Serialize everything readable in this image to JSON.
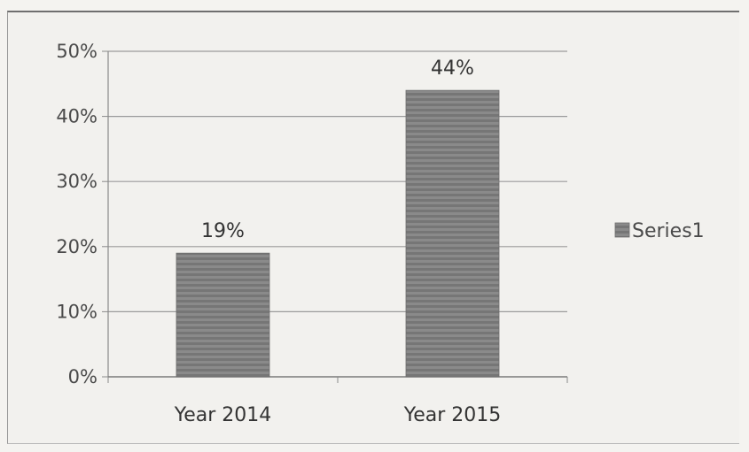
{
  "chart_data": {
    "type": "bar",
    "categories": [
      "Year 2014",
      "Year 2015"
    ],
    "series": [
      {
        "name": "Series1",
        "values": [
          0.19,
          0.44
        ]
      }
    ],
    "data_labels": [
      "19%",
      "44%"
    ],
    "y_ticks": [
      "0%",
      "10%",
      "20%",
      "30%",
      "40%",
      "50%"
    ],
    "ylim": [
      0,
      0.5
    ],
    "grid": true,
    "legend_position": "right",
    "bar_color": "#7d7d7d"
  }
}
